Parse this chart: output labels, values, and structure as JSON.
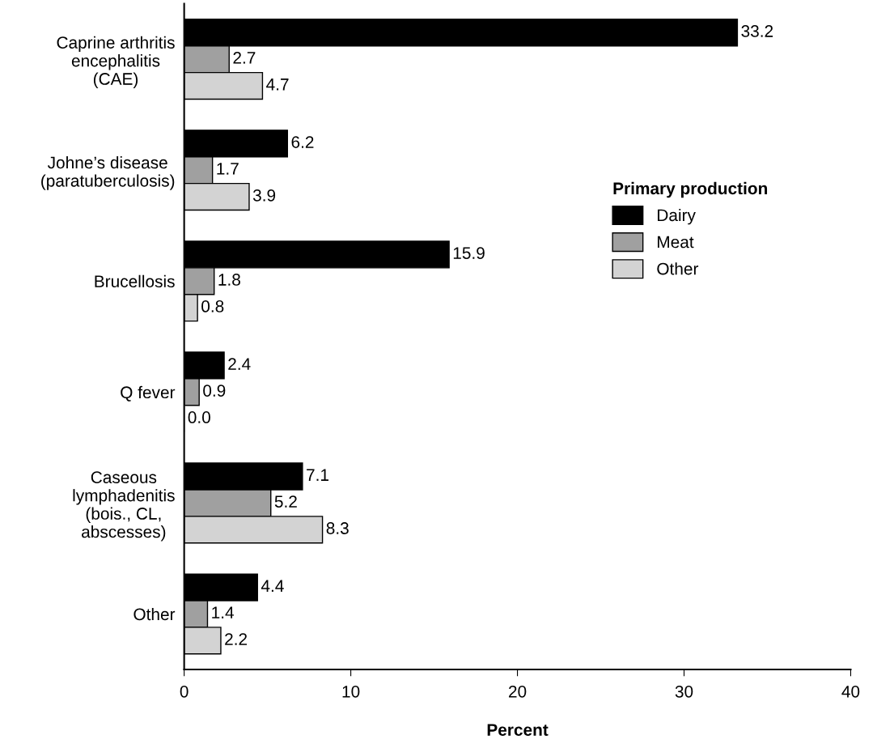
{
  "chart_data": {
    "type": "bar",
    "orientation": "horizontal",
    "xlabel": "Percent",
    "legend_title": "Primary production",
    "legend": "right",
    "data_labels": true,
    "categories": [
      "Caprine arthritis\nencephalitis\n(CAE)",
      "Johne’s disease\n(paratuberculosis)",
      "Brucellosis",
      "Q fever",
      "Caseous\nlymphadenitis\n(bois., CL,\nabscesses)",
      "Other"
    ],
    "series": [
      {
        "name": "Dairy",
        "color": "#000000",
        "values": [
          33.2,
          6.2,
          15.9,
          2.4,
          7.1,
          4.4
        ]
      },
      {
        "name": "Meat",
        "color": "#a0a0a0",
        "values": [
          2.7,
          1.7,
          1.8,
          0.9,
          5.2,
          1.4
        ]
      },
      {
        "name": "Other",
        "color": "#d3d3d3",
        "values": [
          4.7,
          3.9,
          0.8,
          0.0,
          8.3,
          2.2
        ],
        "value_labels": [
          "4.7",
          "3.9",
          "0.8",
          "0.0",
          "8.3",
          "2.2"
        ]
      }
    ],
    "xlim": [
      0,
      40
    ],
    "xticks": [
      0,
      10,
      20,
      30,
      40
    ]
  }
}
